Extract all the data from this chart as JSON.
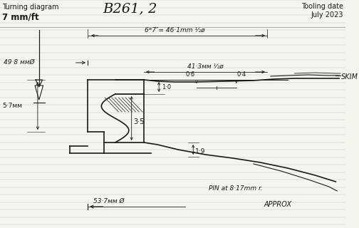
{
  "title": "B261, 2",
  "subtitle_left1": "Turning diagram",
  "subtitle_left2": "7 mm/ft",
  "subtitle_right": "Tooling date\nJuly 2023",
  "bg_color": "#f5f5f0",
  "line_color": "#1a1a1a",
  "line_color_blue": "#c8d0d8",
  "dim1": "6ʷ7″= 46·1mm ½ø",
  "dim2": "49·8 ммØ",
  "dim3": "41·3мм ½ø",
  "dim4": "1·0",
  "dim5": "3·5",
  "dim6": "5·7мм",
  "dim7": "0·6",
  "dim8": "0·4",
  "dim9": "1·9",
  "dim10": "53·7мм Ø",
  "dim11": "PIN at 8·17mm r.",
  "dim12": "APPROX",
  "dim13": "SKIM"
}
